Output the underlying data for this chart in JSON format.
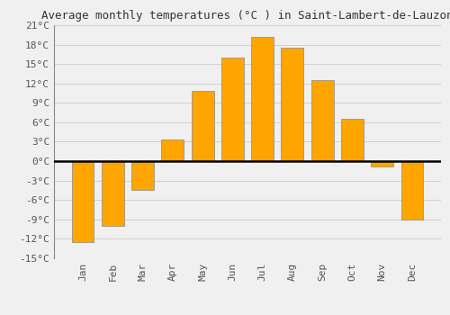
{
  "title": "Average monthly temperatures (°C ) in Saint-Lambert-de-Lauzon",
  "months": [
    "Jan",
    "Feb",
    "Mar",
    "Apr",
    "May",
    "Jun",
    "Jul",
    "Aug",
    "Sep",
    "Oct",
    "Nov",
    "Dec"
  ],
  "values": [
    -12.5,
    -10.0,
    -4.5,
    3.3,
    10.8,
    16.0,
    19.2,
    17.5,
    12.5,
    6.5,
    -0.8,
    -9.0
  ],
  "bar_color": "#FFA500",
  "bar_edge_color": "#888888",
  "background_color": "#f0f0f0",
  "grid_color": "#d0d0d0",
  "zero_line_color": "#000000",
  "ylim": [
    -15,
    21
  ],
  "yticks": [
    -15,
    -12,
    -9,
    -6,
    -3,
    0,
    3,
    6,
    9,
    12,
    15,
    18,
    21
  ],
  "ytick_labels": [
    "-15°C",
    "-12°C",
    "-9°C",
    "-6°C",
    "-3°C",
    "0°C",
    "3°C",
    "6°C",
    "9°C",
    "12°C",
    "15°C",
    "18°C",
    "21°C"
  ],
  "title_fontsize": 9,
  "tick_fontsize": 8,
  "title_font": "monospace",
  "tick_font": "monospace",
  "bar_width": 0.75
}
